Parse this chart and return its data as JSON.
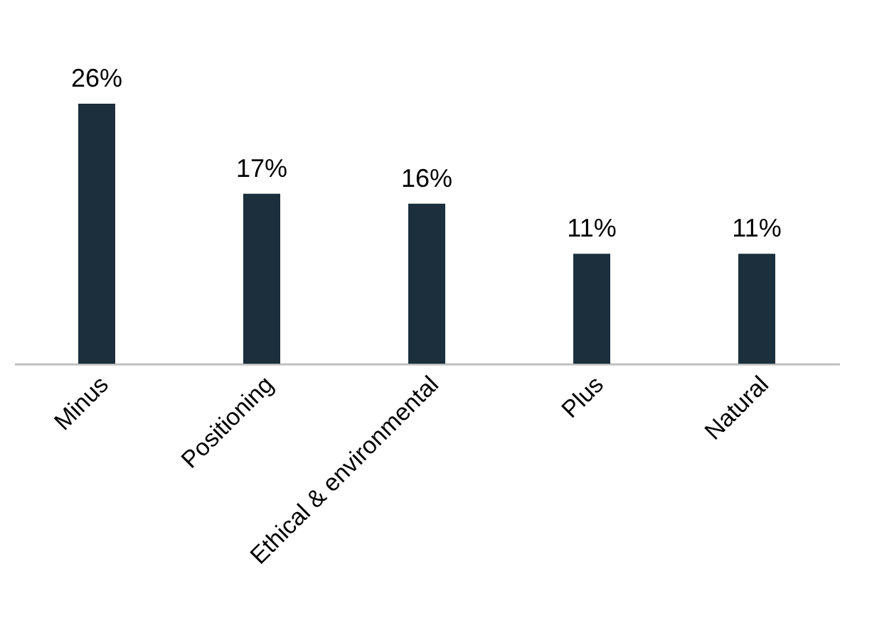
{
  "chart_data": {
    "type": "bar",
    "categories": [
      "Minus",
      "Positioning",
      "Ethical & environmental",
      "Plus",
      "Natural"
    ],
    "values": [
      26,
      17,
      16,
      11,
      11
    ],
    "value_labels": [
      "26%",
      "17%",
      "16%",
      "11%",
      "11%"
    ],
    "color": "#1b2f3c",
    "grid": false
  }
}
